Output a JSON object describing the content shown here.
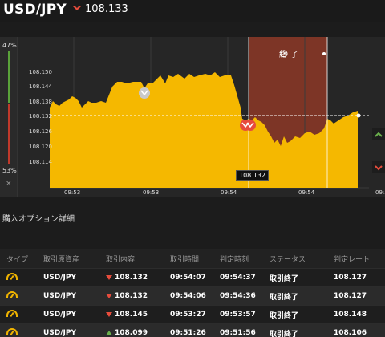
{
  "header": {
    "pair": "USD/JPY",
    "price": "108.133",
    "direction_color": "#e74c3c"
  },
  "gauge": {
    "up_pct": "47%",
    "down_pct": "53%",
    "close_symbol": "×"
  },
  "chart": {
    "end_label": "終了",
    "clock_icon": "clock-icon",
    "current_price_tag": "108.132",
    "accent_color": "#f5b800",
    "expiry_color": "#8a3a2c",
    "y_ticks": [
      "108.150",
      "108.144",
      "108.138",
      "108.132",
      "108.126",
      "108.120",
      "108.114"
    ],
    "x_ticks": [
      "09:53",
      "09:53",
      "09:54",
      "09:54",
      "09:5"
    ]
  },
  "section": {
    "title": "購入オプション詳細"
  },
  "table": {
    "headers": [
      "タイプ",
      "取引原資産",
      "取引内容",
      "取引時間",
      "判定時刻",
      "ステータス",
      "判定レート"
    ],
    "rows": [
      {
        "asset": "USD/JPY",
        "dir": "down",
        "rate": "108.132",
        "time": "09:54:07",
        "judge": "09:54:37",
        "status": "取引終了",
        "result": "108.127"
      },
      {
        "asset": "USD/JPY",
        "dir": "down",
        "rate": "108.132",
        "time": "09:54:06",
        "judge": "09:54:36",
        "status": "取引終了",
        "result": "108.127"
      },
      {
        "asset": "USD/JPY",
        "dir": "down",
        "rate": "108.145",
        "time": "09:53:27",
        "judge": "09:53:57",
        "status": "取引終了",
        "result": "108.148"
      },
      {
        "asset": "USD/JPY",
        "dir": "up",
        "rate": "108.099",
        "time": "09:51:26",
        "judge": "09:51:56",
        "status": "取引終了",
        "result": "108.106"
      }
    ]
  }
}
